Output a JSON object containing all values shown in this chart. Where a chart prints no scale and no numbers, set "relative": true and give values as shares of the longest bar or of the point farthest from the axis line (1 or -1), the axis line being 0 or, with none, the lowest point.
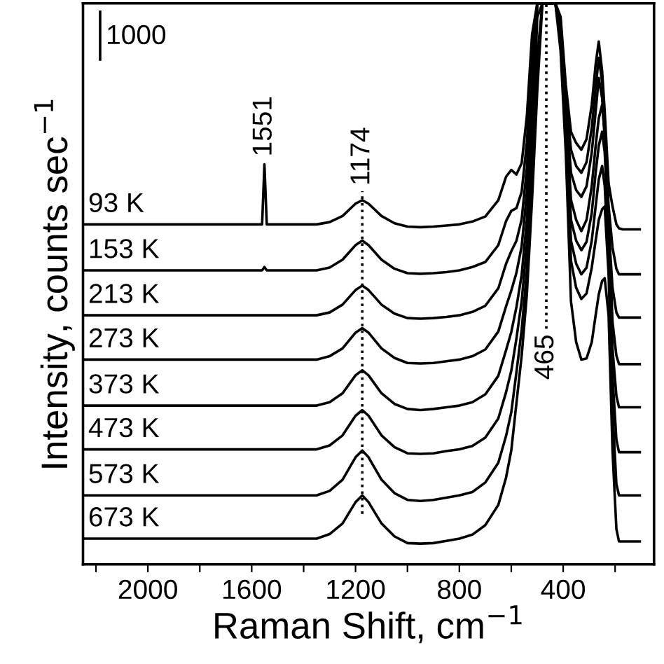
{
  "chart_data": {
    "type": "line",
    "relative": true,
    "xlabel": "Raman Shift, cm$^{−1}$",
    "ylabel": "Intensity, counts sec$^{−1}$",
    "x": [
      2250,
      2000,
      1800,
      1600,
      1560,
      1551,
      1542,
      1450,
      1350,
      1300,
      1250,
      1200,
      1174,
      1150,
      1100,
      1050,
      1000,
      950,
      900,
      850,
      800,
      750,
      700,
      650,
      620,
      600,
      580,
      560,
      540,
      520,
      500,
      480,
      465,
      450,
      430,
      410,
      390,
      370,
      350,
      330,
      310,
      290,
      275,
      263,
      250,
      240,
      225,
      210,
      195,
      185,
      170,
      140,
      105
    ],
    "xlim": [
      2250,
      50
    ],
    "xticks": [
      {
        "value": 2200,
        "label": null
      },
      2000,
      {
        "value": 1800,
        "label": null
      },
      1600,
      {
        "value": 1400,
        "label": null
      },
      1200,
      {
        "value": 1000,
        "label": null
      },
      800,
      {
        "value": 600,
        "label": null
      },
      400,
      {
        "value": 200,
        "label": null
      }
    ],
    "tick_labels": "x",
    "grid": false,
    "legend": false,
    "marker": "none",
    "line_style": "solid",
    "series": [
      {
        "name": "93 K",
        "color": "#000000",
        "values": [
          0.606,
          0.606,
          0.606,
          0.606,
          0.606,
          0.713,
          0.606,
          0.606,
          0.606,
          0.61,
          0.621,
          0.643,
          0.649,
          0.643,
          0.621,
          0.608,
          0.602,
          0.601,
          0.602,
          0.604,
          0.606,
          0.611,
          0.62,
          0.649,
          0.691,
          0.703,
          0.695,
          0.715,
          0.799,
          0.944,
          1,
          1,
          1,
          1,
          1,
          0.976,
          0.855,
          0.771,
          0.751,
          0.739,
          0.758,
          0.819,
          0.891,
          0.932,
          0.879,
          0.807,
          0.679,
          0.638,
          0.606,
          0.599,
          0.597,
          0.597,
          0.597
        ]
      },
      {
        "name": "153 K",
        "color": "#000000",
        "values": [
          0.524,
          0.524,
          0.524,
          0.524,
          0.524,
          0.53,
          0.524,
          0.524,
          0.524,
          0.529,
          0.543,
          0.569,
          0.577,
          0.569,
          0.543,
          0.527,
          0.519,
          0.518,
          0.519,
          0.521,
          0.524,
          0.53,
          0.539,
          0.569,
          0.612,
          0.63,
          0.635,
          0.664,
          0.752,
          0.9,
          1,
          1,
          1,
          1,
          1,
          0.969,
          0.836,
          0.739,
          0.71,
          0.698,
          0.717,
          0.778,
          0.85,
          0.903,
          0.86,
          0.783,
          0.638,
          0.565,
          0.527,
          0.517,
          0.517,
          0.517,
          0.517
        ]
      },
      {
        "name": "213 K",
        "color": "#000000",
        "values": [
          0.444,
          0.444,
          0.444,
          0.444,
          0.444,
          0.444,
          0.444,
          0.444,
          0.444,
          0.449,
          0.463,
          0.489,
          0.497,
          0.489,
          0.463,
          0.447,
          0.439,
          0.438,
          0.439,
          0.441,
          0.444,
          0.45,
          0.461,
          0.492,
          0.536,
          0.558,
          0.577,
          0.615,
          0.706,
          0.858,
          1,
          1,
          1,
          1,
          1,
          0.961,
          0.819,
          0.698,
          0.667,
          0.655,
          0.674,
          0.734,
          0.807,
          0.867,
          0.831,
          0.758,
          0.601,
          0.493,
          0.449,
          0.44,
          0.44,
          0.44,
          0.44
        ]
      },
      {
        "name": "273 K",
        "color": "#000000",
        "values": [
          0.365,
          0.365,
          0.365,
          0.365,
          0.365,
          0.365,
          0.365,
          0.365,
          0.365,
          0.371,
          0.385,
          0.413,
          0.421,
          0.413,
          0.385,
          0.368,
          0.359,
          0.358,
          0.359,
          0.362,
          0.365,
          0.371,
          0.383,
          0.415,
          0.46,
          0.488,
          0.52,
          0.567,
          0.662,
          0.817,
          1,
          1,
          1,
          1,
          1,
          0.954,
          0.802,
          0.65,
          0.614,
          0.594,
          0.614,
          0.674,
          0.746,
          0.795,
          0.819,
          0.771,
          0.614,
          0.432,
          0.372,
          0.357,
          0.357,
          0.357,
          0.357
        ]
      },
      {
        "name": "373 K",
        "color": "#000000",
        "values": [
          0.283,
          0.283,
          0.283,
          0.283,
          0.283,
          0.283,
          0.283,
          0.283,
          0.283,
          0.289,
          0.305,
          0.337,
          0.346,
          0.337,
          0.305,
          0.286,
          0.277,
          0.275,
          0.277,
          0.28,
          0.283,
          0.289,
          0.303,
          0.336,
          0.382,
          0.414,
          0.459,
          0.516,
          0.614,
          0.773,
          1,
          1,
          1,
          1,
          1,
          0.947,
          0.787,
          0.614,
          0.577,
          0.56,
          0.575,
          0.626,
          0.698,
          0.746,
          0.771,
          0.734,
          0.589,
          0.384,
          0.3,
          0.28,
          0.28,
          0.28,
          0.28
        ]
      },
      {
        "name": "473 K",
        "color": "#000000",
        "values": [
          0.205,
          0.205,
          0.205,
          0.205,
          0.205,
          0.205,
          0.205,
          0.205,
          0.205,
          0.212,
          0.23,
          0.265,
          0.275,
          0.265,
          0.23,
          0.209,
          0.198,
          0.197,
          0.198,
          0.202,
          0.205,
          0.211,
          0.226,
          0.26,
          0.307,
          0.345,
          0.403,
          0.469,
          0.571,
          0.733,
          0.975,
          1,
          1,
          1,
          1,
          0.94,
          0.771,
          0.577,
          0.536,
          0.517,
          0.529,
          0.577,
          0.638,
          0.686,
          0.71,
          0.674,
          0.541,
          0.336,
          0.222,
          0.2,
          0.2,
          0.2,
          0.2
        ]
      },
      {
        "name": "573 K",
        "color": "#000000",
        "values": [
          0.123,
          0.123,
          0.123,
          0.123,
          0.123,
          0.123,
          0.123,
          0.123,
          0.123,
          0.131,
          0.151,
          0.191,
          0.203,
          0.191,
          0.151,
          0.127,
          0.115,
          0.113,
          0.115,
          0.119,
          0.123,
          0.129,
          0.146,
          0.181,
          0.229,
          0.271,
          0.343,
          0.418,
          0.523,
          0.689,
          0.905,
          1,
          1,
          1,
          1,
          0.932,
          0.758,
          0.541,
          0.493,
          0.473,
          0.483,
          0.529,
          0.577,
          0.614,
          0.633,
          0.638,
          0.517,
          0.275,
          0.143,
          0.123,
          0.123,
          0.123,
          0.123
        ]
      },
      {
        "name": "673 K",
        "color": "#000000",
        "values": [
          0.046,
          0.046,
          0.046,
          0.046,
          0.046,
          0.046,
          0.046,
          0.046,
          0.046,
          0.054,
          0.073,
          0.111,
          0.123,
          0.111,
          0.073,
          0.05,
          0.038,
          0.037,
          0.038,
          0.042,
          0.046,
          0.053,
          0.07,
          0.106,
          0.155,
          0.203,
          0.288,
          0.372,
          0.481,
          0.65,
          0.843,
          1,
          1,
          1,
          1,
          0.915,
          0.734,
          0.469,
          0.396,
          0.365,
          0.367,
          0.396,
          0.444,
          0.481,
          0.505,
          0.51,
          0.444,
          0.203,
          0.063,
          0.041,
          0.041,
          0.041,
          0.041
        ]
      }
    ],
    "ref_lines": [
      {
        "axis": "x",
        "value": 1174,
        "label": "1174",
        "line_style": "dotted",
        "color": "#000000"
      },
      {
        "axis": "x",
        "value": 465,
        "label": "465",
        "line_style": "dotted",
        "color": "#000000"
      }
    ],
    "annotations": [
      {
        "text": "1551",
        "x": 1551,
        "y": 0.713
      },
      "1000"
    ]
  }
}
